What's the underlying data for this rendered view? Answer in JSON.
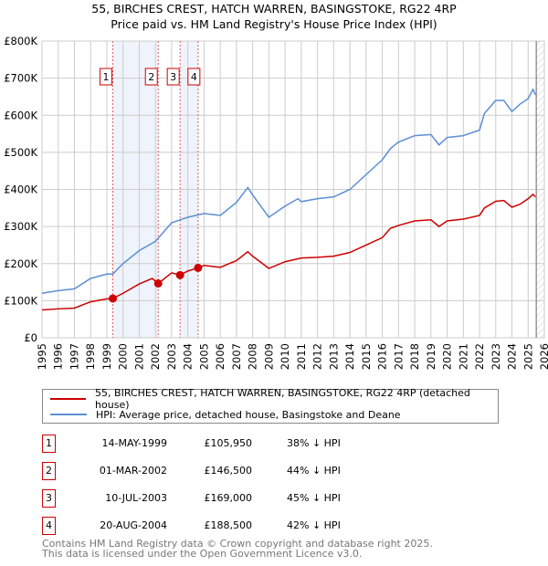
{
  "chart_data": {
    "type": "line",
    "title": "55, BIRCHES CREST, HATCH WARREN, BASINGSTOKE, RG22 4RP",
    "subtitle": "Price paid vs. HM Land Registry's House Price Index (HPI)",
    "xlim": [
      1995,
      2026
    ],
    "ylim": [
      0,
      800000
    ],
    "yticks": [
      {
        "v": 0,
        "l": "£0"
      },
      {
        "v": 100000,
        "l": "£100K"
      },
      {
        "v": 200000,
        "l": "£200K"
      },
      {
        "v": 300000,
        "l": "£300K"
      },
      {
        "v": 400000,
        "l": "£400K"
      },
      {
        "v": 500000,
        "l": "£500K"
      },
      {
        "v": 600000,
        "l": "£600K"
      },
      {
        "v": 700000,
        "l": "£700K"
      },
      {
        "v": 800000,
        "l": "£800K"
      }
    ],
    "xticks": [
      1995,
      1996,
      1997,
      1998,
      1999,
      2000,
      2001,
      2002,
      2003,
      2004,
      2005,
      2006,
      2007,
      2008,
      2009,
      2010,
      2011,
      2012,
      2013,
      2014,
      2015,
      2016,
      2017,
      2018,
      2019,
      2020,
      2021,
      2022,
      2023,
      2024,
      2025,
      2026
    ],
    "shaded": [
      [
        1999.37,
        2002.17
      ],
      [
        2003.52,
        2004.63
      ]
    ],
    "hatched_from": 2025.5,
    "series": [
      {
        "name": "55, BIRCHES CREST, HATCH WARREN, BASINGSTOKE, RG22 4RP (detached house)",
        "color": "#cc0000",
        "x": [
          1995,
          1996,
          1997,
          1998,
          1999,
          1999.37,
          2000,
          2001,
          2001.8,
          2002.17,
          2003,
          2003.52,
          2004,
          2004.63,
          2005,
          2006,
          2007,
          2007.7,
          2008,
          2009,
          2010,
          2011,
          2012,
          2013,
          2014,
          2015,
          2016,
          2016.5,
          2017,
          2018,
          2019,
          2019.5,
          2020,
          2021,
          2022,
          2022.3,
          2023,
          2023.5,
          2024,
          2024.5,
          2025,
          2025.3,
          2025.45
        ],
        "y": [
          75000,
          78000,
          80000,
          97000,
          105000,
          105950,
          120000,
          145000,
          160000,
          146500,
          175000,
          169000,
          180000,
          188500,
          195000,
          190000,
          208000,
          232000,
          220000,
          187000,
          205000,
          215000,
          217000,
          220000,
          230000,
          250000,
          270000,
          295000,
          303000,
          315000,
          318000,
          300000,
          315000,
          320000,
          330000,
          350000,
          368000,
          370000,
          352000,
          360000,
          375000,
          387000,
          380000
        ]
      },
      {
        "name": "HPI: Average price, detached house, Basingstoke and Deane",
        "color": "#5b8fd4",
        "x": [
          1995,
          1996,
          1997,
          1998,
          1999,
          1999.37,
          2000,
          2001,
          2002,
          2003,
          2004,
          2005,
          2006,
          2007,
          2007.7,
          2008,
          2009,
          2010,
          2010.8,
          2011,
          2012,
          2013,
          2014,
          2015,
          2016,
          2016.5,
          2017,
          2018,
          2019,
          2019.5,
          2020,
          2021,
          2022,
          2022.3,
          2023,
          2023.5,
          2024,
          2024.5,
          2025,
          2025.3,
          2025.45
        ],
        "y": [
          120000,
          127000,
          132000,
          160000,
          172000,
          172000,
          200000,
          235000,
          260000,
          310000,
          325000,
          335000,
          330000,
          365000,
          405000,
          385000,
          325000,
          355000,
          375000,
          367000,
          375000,
          380000,
          400000,
          440000,
          480000,
          510000,
          528000,
          545000,
          548000,
          520000,
          540000,
          545000,
          560000,
          605000,
          640000,
          640000,
          610000,
          630000,
          645000,
          670000,
          655000
        ]
      }
    ],
    "sales": [
      {
        "n": "1",
        "x": 1999.37,
        "date": "14-MAY-1999",
        "price": "£105,950",
        "v": 105950,
        "hpi": "38% ↓ HPI"
      },
      {
        "n": "2",
        "x": 2002.17,
        "date": "01-MAR-2002",
        "price": "£146,500",
        "v": 146500,
        "hpi": "44% ↓ HPI"
      },
      {
        "n": "3",
        "x": 2003.52,
        "date": "10-JUL-2003",
        "price": "£169,000",
        "v": 169000,
        "hpi": "45% ↓ HPI"
      },
      {
        "n": "4",
        "x": 2004.63,
        "date": "20-AUG-2004",
        "price": "£188,500",
        "v": 188500,
        "hpi": "42% ↓ HPI"
      }
    ]
  },
  "footer": {
    "line1": "Contains HM Land Registry data © Crown copyright and database right 2025.",
    "line2": "This data is licensed under the Open Government Licence v3.0."
  }
}
